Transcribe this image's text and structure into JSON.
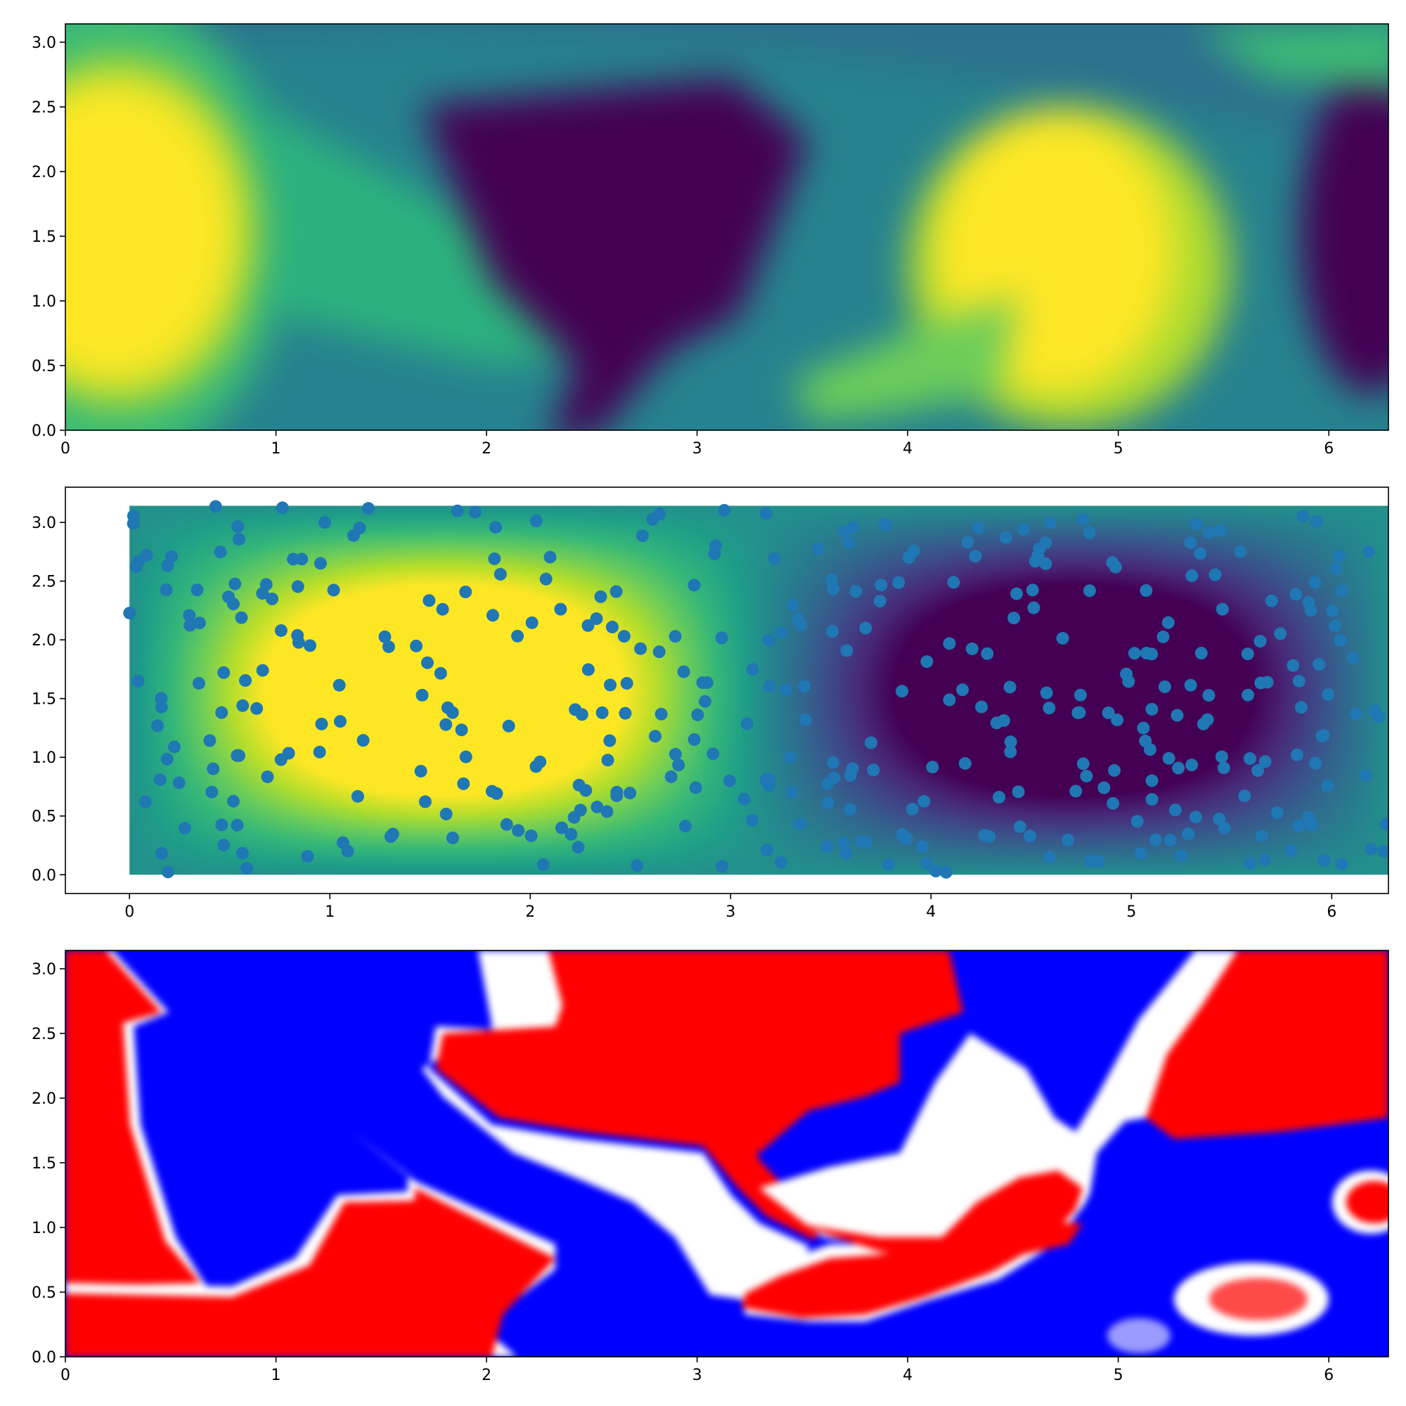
{
  "chart_data": [
    {
      "type": "heatmap",
      "title": "",
      "xlabel": "",
      "ylabel": "",
      "colormap": "viridis",
      "xlim": [
        0,
        6.283
      ],
      "ylim": [
        0,
        3.1416
      ],
      "xticks": [
        0,
        1,
        2,
        3,
        4,
        5,
        6
      ],
      "yticks": [
        0.0,
        0.5,
        1.0,
        1.5,
        2.0,
        2.5,
        3.0
      ],
      "xtick_labels": [
        "0",
        "1",
        "2",
        "3",
        "4",
        "5",
        "6"
      ],
      "ytick_labels": [
        "0.0",
        "0.5",
        "1.0",
        "1.5",
        "2.0",
        "2.5",
        "3.0"
      ],
      "grid": false
    },
    {
      "type": "scatter",
      "title": "",
      "xlabel": "",
      "ylabel": "",
      "colormap": "viridis",
      "background": "heatmap of sin(x)·sin(y)",
      "point_color": "#1f77b4",
      "xlim": [
        -0.32,
        6.283
      ],
      "ylim": [
        -0.16,
        3.3
      ],
      "image_extent": [
        0,
        6.283,
        0,
        3.1416
      ],
      "xticks": [
        0,
        1,
        2,
        3,
        4,
        5,
        6
      ],
      "yticks": [
        0.0,
        0.5,
        1.0,
        1.5,
        2.0,
        2.5,
        3.0
      ],
      "xtick_labels": [
        "0",
        "1",
        "2",
        "3",
        "4",
        "5",
        "6"
      ],
      "ytick_labels": [
        "0.0",
        "0.5",
        "1.0",
        "1.5",
        "2.0",
        "2.5",
        "3.0"
      ],
      "point_count": 400,
      "grid": false
    },
    {
      "type": "heatmap",
      "title": "",
      "xlabel": "",
      "ylabel": "",
      "colormap": "bwr",
      "colors": [
        "#0000ff",
        "#ffffff",
        "#ff0000"
      ],
      "xlim": [
        0,
        6.283
      ],
      "ylim": [
        0,
        3.1416
      ],
      "xticks": [
        0,
        1,
        2,
        3,
        4,
        5,
        6
      ],
      "yticks": [
        0.0,
        0.5,
        1.0,
        1.5,
        2.0,
        2.5,
        3.0
      ],
      "xtick_labels": [
        "0",
        "1",
        "2",
        "3",
        "4",
        "5",
        "6"
      ],
      "ytick_labels": [
        "0.0",
        "0.5",
        "1.0",
        "1.5",
        "2.0",
        "2.5",
        "3.0"
      ],
      "grid": false
    }
  ]
}
